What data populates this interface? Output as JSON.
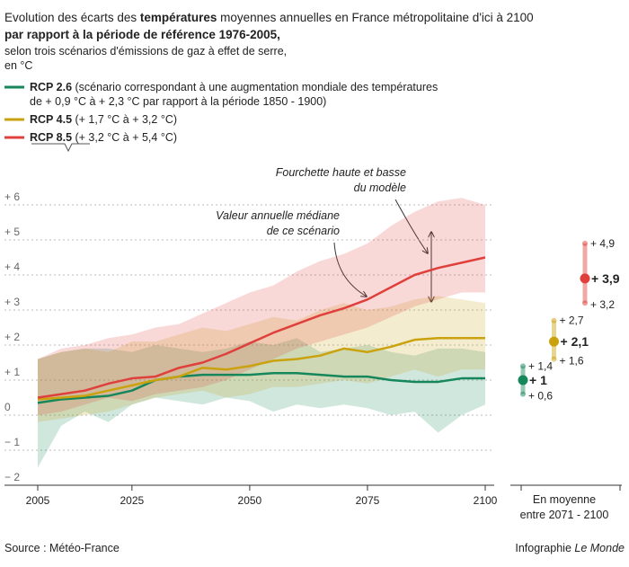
{
  "chart_data": {
    "type": "line",
    "title": [
      "Evolution des écarts des ",
      "températures",
      " moyennes annuelles en France métropolitaine d'ici à 2100",
      "par rapport à la période de référence 1976-2005,"
    ],
    "subtitle": [
      "selon trois scénarios d'émissions de gaz à effet de serre,",
      "en °C"
    ],
    "x": [
      2005,
      2010,
      2015,
      2020,
      2025,
      2030,
      2035,
      2040,
      2045,
      2050,
      2055,
      2060,
      2065,
      2070,
      2075,
      2080,
      2085,
      2090,
      2095,
      2100
    ],
    "xlim": [
      2005,
      2100
    ],
    "xticks": [
      2005,
      2025,
      2050,
      2075,
      2100
    ],
    "ylim": [
      -2,
      6
    ],
    "yticks": [
      {
        "value": -2,
        "label": "− 2"
      },
      {
        "value": -1,
        "label": "− 1"
      },
      0,
      {
        "value": 1,
        "label": "+ 1"
      },
      {
        "value": 2,
        "label": "+ 2"
      },
      {
        "value": 3,
        "label": "+ 3"
      },
      {
        "value": 4,
        "label": "+ 4"
      },
      {
        "value": 5,
        "label": "+ 5"
      },
      {
        "value": 6,
        "label": "+ 6"
      }
    ],
    "grid": true,
    "series": [
      {
        "name": "RCP 2.6",
        "color": "#16875a",
        "description": [
          "(scénario correspondant à une augmentation mondiale des températures",
          "de + 0,9 °C à + 2,3 °C par rapport à la période 1850 - 1900)"
        ],
        "values": [
          0.35,
          0.45,
          0.5,
          0.55,
          0.7,
          1.0,
          1.1,
          1.15,
          1.15,
          1.15,
          1.2,
          1.2,
          1.15,
          1.1,
          1.1,
          1.0,
          0.95,
          0.95,
          1.05,
          1.05
        ],
        "low": [
          -1.5,
          -0.3,
          0.1,
          -0.2,
          0.3,
          0.5,
          0.4,
          0.3,
          0.5,
          0.4,
          0.1,
          0.3,
          0.2,
          0.3,
          0.2,
          0.0,
          0.1,
          -0.5,
          0.0,
          0.3
        ],
        "high": [
          1.6,
          1.8,
          1.9,
          1.9,
          1.8,
          2.0,
          1.9,
          1.8,
          1.9,
          2.1,
          2.0,
          2.2,
          1.8,
          1.9,
          2.0,
          1.8,
          1.7,
          1.9,
          1.9,
          1.8
        ],
        "mean": 1,
        "mean_label": "+ 1",
        "range": [
          0.6,
          1.4
        ],
        "range_labels": [
          "+ 0,6",
          "+ 1,4"
        ]
      },
      {
        "name": "RCP 4.5",
        "color": "#c9a20e",
        "description": [
          "(+ 1,7 °C à + 3,2 °C)"
        ],
        "values": [
          0.45,
          0.5,
          0.55,
          0.7,
          0.85,
          1.0,
          1.1,
          1.35,
          1.3,
          1.4,
          1.55,
          1.6,
          1.7,
          1.9,
          1.8,
          1.95,
          2.15,
          2.2,
          2.2,
          2.2
        ],
        "low": [
          -0.2,
          -0.1,
          0.0,
          0.1,
          0.3,
          0.5,
          0.6,
          0.7,
          0.5,
          0.6,
          0.8,
          0.8,
          0.9,
          1.0,
          0.9,
          1.1,
          1.3,
          1.1,
          1.3,
          1.3
        ],
        "high": [
          1.6,
          1.8,
          1.9,
          1.8,
          2.1,
          2.1,
          2.3,
          2.5,
          2.4,
          2.6,
          2.8,
          2.7,
          3.0,
          3.2,
          3.0,
          3.1,
          3.3,
          3.4,
          3.3,
          3.2
        ],
        "mean": 2.1,
        "mean_label": "+ 2,1",
        "range": [
          1.6,
          2.7
        ],
        "range_labels": [
          "+ 1,6",
          "+ 2,7"
        ]
      },
      {
        "name": "RCP 8.5",
        "color": "#e0403c",
        "description": [
          "(+ 3,2 °C à + 5,4 °C)"
        ],
        "values": [
          0.5,
          0.6,
          0.7,
          0.9,
          1.05,
          1.1,
          1.35,
          1.5,
          1.75,
          2.05,
          2.35,
          2.6,
          2.85,
          3.05,
          3.3,
          3.65,
          4.0,
          4.2,
          4.35,
          4.5
        ],
        "low": [
          0.0,
          0.1,
          0.3,
          0.5,
          0.4,
          0.6,
          0.7,
          0.8,
          1.0,
          1.3,
          1.6,
          1.9,
          2.1,
          2.3,
          2.5,
          2.8,
          3.1,
          3.3,
          3.5,
          3.5
        ],
        "high": [
          1.6,
          1.9,
          2.0,
          2.2,
          2.3,
          2.5,
          2.6,
          2.9,
          3.2,
          3.5,
          3.7,
          4.1,
          4.4,
          4.6,
          4.9,
          5.4,
          5.8,
          6.1,
          6.2,
          6.0
        ],
        "mean": 3.9,
        "mean_label": "+ 3,9",
        "range": [
          3.2,
          4.9
        ],
        "range_labels": [
          "+ 3,2",
          "+ 4,9"
        ]
      }
    ],
    "summary_caption": [
      "En moyenne",
      "entre 2071 - 2100"
    ],
    "annotations": [
      [
        "Fourchette haute et basse",
        "du modèle"
      ],
      [
        "Valeur annuelle médiane",
        "de ce scénario"
      ]
    ],
    "source": "Source : Météo-France",
    "credit": [
      "Infographie",
      "Le Monde"
    ]
  }
}
